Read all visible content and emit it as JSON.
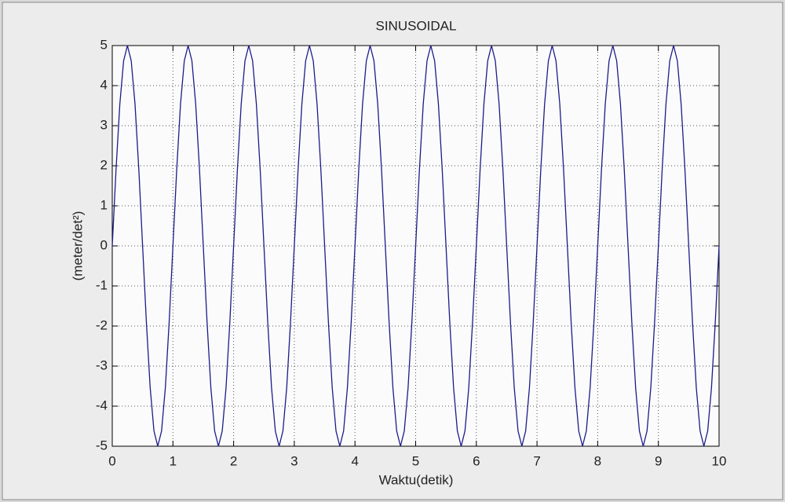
{
  "chart_data": {
    "type": "line",
    "title": "SINUSOIDAL",
    "x_label": "Waktu(detik)",
    "y_label": "(meter/det²)",
    "x": [
      0,
      0.0625,
      0.125,
      0.1875,
      0.25,
      0.3125,
      0.375,
      0.4375,
      0.5,
      0.5625,
      0.625,
      0.6875,
      0.75,
      0.8125,
      0.875,
      0.9375,
      1,
      1.0625,
      1.125,
      1.1875,
      1.25,
      1.3125,
      1.375,
      1.4375,
      1.5,
      1.5625,
      1.625,
      1.6875,
      1.75,
      1.8125,
      1.875,
      1.9375,
      2,
      2.0625,
      2.125,
      2.1875,
      2.25,
      2.3125,
      2.375,
      2.4375,
      2.5,
      2.5625,
      2.625,
      2.6875,
      2.75,
      2.8125,
      2.875,
      2.9375,
      3,
      3.0625,
      3.125,
      3.1875,
      3.25,
      3.3125,
      3.375,
      3.4375,
      3.5,
      3.5625,
      3.625,
      3.6875,
      3.75,
      3.8125,
      3.875,
      3.9375,
      4,
      4.0625,
      4.125,
      4.1875,
      4.25,
      4.3125,
      4.375,
      4.4375,
      4.5,
      4.5625,
      4.625,
      4.6875,
      4.75,
      4.8125,
      4.875,
      4.9375,
      5,
      5.0625,
      5.125,
      5.1875,
      5.25,
      5.3125,
      5.375,
      5.4375,
      5.5,
      5.5625,
      5.625,
      5.6875,
      5.75,
      5.8125,
      5.875,
      5.9375,
      6,
      6.0625,
      6.125,
      6.1875,
      6.25,
      6.3125,
      6.375,
      6.4375,
      6.5,
      6.5625,
      6.625,
      6.6875,
      6.75,
      6.8125,
      6.875,
      6.9375,
      7,
      7.0625,
      7.125,
      7.1875,
      7.25,
      7.3125,
      7.375,
      7.4375,
      7.5,
      7.5625,
      7.625,
      7.6875,
      7.75,
      7.8125,
      7.875,
      7.9375,
      8,
      8.0625,
      8.125,
      8.1875,
      8.25,
      8.3125,
      8.375,
      8.4375,
      8.5,
      8.5625,
      8.625,
      8.6875,
      8.75,
      8.8125,
      8.875,
      8.9375,
      9,
      9.0625,
      9.125,
      9.1875,
      9.25,
      9.3125,
      9.375,
      9.4375,
      9.5,
      9.5625,
      9.625,
      9.6875,
      9.75,
      9.8125,
      9.875,
      9.9375,
      10
    ],
    "series": [
      {
        "color": "#1c1c8a",
        "values": [
          0,
          1.91,
          3.54,
          4.62,
          5,
          4.62,
          3.54,
          1.91,
          0,
          -1.91,
          -3.54,
          -4.62,
          -5,
          -4.62,
          -3.54,
          -1.91,
          0,
          1.91,
          3.54,
          4.62,
          5,
          4.62,
          3.54,
          1.91,
          0,
          -1.91,
          -3.54,
          -4.62,
          -5,
          -4.62,
          -3.54,
          -1.91,
          0,
          1.91,
          3.54,
          4.62,
          5,
          4.62,
          3.54,
          1.91,
          0,
          -1.91,
          -3.54,
          -4.62,
          -5,
          -4.62,
          -3.54,
          -1.91,
          0,
          1.91,
          3.54,
          4.62,
          5,
          4.62,
          3.54,
          1.91,
          0,
          -1.91,
          -3.54,
          -4.62,
          -5,
          -4.62,
          -3.54,
          -1.91,
          0,
          1.91,
          3.54,
          4.62,
          5,
          4.62,
          3.54,
          1.91,
          0,
          -1.91,
          -3.54,
          -4.62,
          -5,
          -4.62,
          -3.54,
          -1.91,
          0,
          1.91,
          3.54,
          4.62,
          5,
          4.62,
          3.54,
          1.91,
          0,
          -1.91,
          -3.54,
          -4.62,
          -5,
          -4.62,
          -3.54,
          -1.91,
          0,
          1.91,
          3.54,
          4.62,
          5,
          4.62,
          3.54,
          1.91,
          0,
          -1.91,
          -3.54,
          -4.62,
          -5,
          -4.62,
          -3.54,
          -1.91,
          0,
          1.91,
          3.54,
          4.62,
          5,
          4.62,
          3.54,
          1.91,
          0,
          -1.91,
          -3.54,
          -4.62,
          -5,
          -4.62,
          -3.54,
          -1.91,
          0,
          1.91,
          3.54,
          4.62,
          5,
          4.62,
          3.54,
          1.91,
          0,
          -1.91,
          -3.54,
          -4.62,
          -5,
          -4.62,
          -3.54,
          -1.91,
          0,
          1.91,
          3.54,
          4.62,
          5,
          4.62,
          3.54,
          1.91,
          0,
          -1.91,
          -3.54,
          -4.62,
          -5,
          -4.62,
          -3.54,
          -1.91,
          0
        ]
      }
    ],
    "xlim": [
      0,
      10
    ],
    "xticks": [
      0,
      1,
      2,
      3,
      4,
      5,
      6,
      7,
      8,
      9,
      10
    ],
    "ylim": [
      -5,
      5
    ],
    "yticks": [
      -5,
      -4,
      -3,
      -2,
      -1,
      0,
      1,
      2,
      3,
      4,
      5
    ],
    "grid": true
  }
}
